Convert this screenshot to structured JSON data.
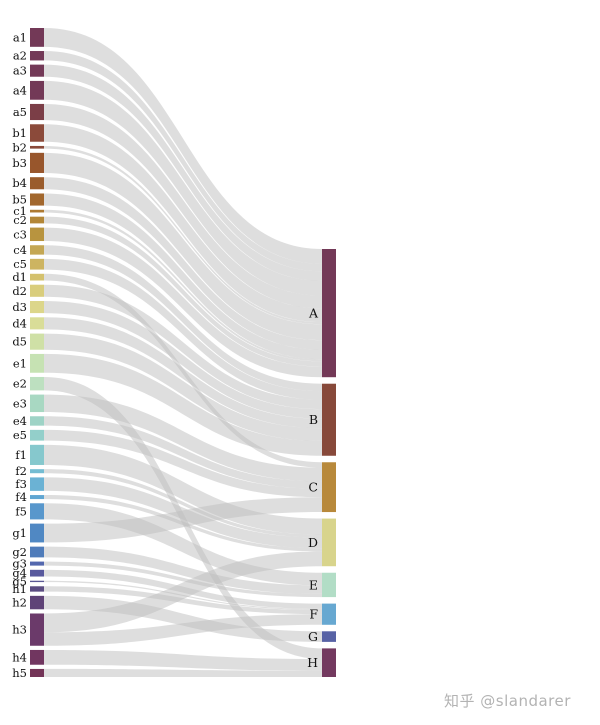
{
  "chart_data": {
    "type": "sankey",
    "title": "",
    "sources": [
      {
        "name": "a1",
        "color": "#733957",
        "value": 14
      },
      {
        "name": "a2",
        "color": "#733957",
        "value": 7
      },
      {
        "name": "a3",
        "color": "#733957",
        "value": 9
      },
      {
        "name": "a4",
        "color": "#733957",
        "value": 14
      },
      {
        "name": "a5",
        "color": "#7b3e47",
        "value": 12
      },
      {
        "name": "b1",
        "color": "#8b4a3a",
        "value": 13
      },
      {
        "name": "b2",
        "color": "#8b4a3a",
        "value": 2
      },
      {
        "name": "b3",
        "color": "#98562c",
        "value": 15
      },
      {
        "name": "b4",
        "color": "#9a5c2c",
        "value": 9
      },
      {
        "name": "b5",
        "color": "#a2672d",
        "value": 9
      },
      {
        "name": "c1",
        "color": "#ad7a32",
        "value": 2
      },
      {
        "name": "c2",
        "color": "#b38738",
        "value": 5
      },
      {
        "name": "c3",
        "color": "#b8943f",
        "value": 10
      },
      {
        "name": "c4",
        "color": "#c4a754",
        "value": 7
      },
      {
        "name": "c5",
        "color": "#cdb461",
        "value": 8
      },
      {
        "name": "d1",
        "color": "#d4c16d",
        "value": 5
      },
      {
        "name": "d2",
        "color": "#d9cd7c",
        "value": 9
      },
      {
        "name": "d3",
        "color": "#dcd68a",
        "value": 9
      },
      {
        "name": "d4",
        "color": "#d9dd98",
        "value": 9
      },
      {
        "name": "d5",
        "color": "#cfe0a6",
        "value": 12
      },
      {
        "name": "e1",
        "color": "#c6e2b3",
        "value": 14
      },
      {
        "name": "e2",
        "color": "#bde0c0",
        "value": 10
      },
      {
        "name": "e3",
        "color": "#a8d8c2",
        "value": 13
      },
      {
        "name": "e4",
        "color": "#9ed3c6",
        "value": 7
      },
      {
        "name": "e5",
        "color": "#93cfca",
        "value": 8
      },
      {
        "name": "f1",
        "color": "#86c8cd",
        "value": 15
      },
      {
        "name": "f2",
        "color": "#74bcd2",
        "value": 3
      },
      {
        "name": "f3",
        "color": "#6bb2d4",
        "value": 10
      },
      {
        "name": "f4",
        "color": "#60a6d2",
        "value": 3
      },
      {
        "name": "f5",
        "color": "#5897cc",
        "value": 12
      },
      {
        "name": "g1",
        "color": "#5088c3",
        "value": 14
      },
      {
        "name": "g2",
        "color": "#4f7cba",
        "value": 8
      },
      {
        "name": "g3",
        "color": "#5468ae",
        "value": 3
      },
      {
        "name": "g4",
        "color": "#58599d",
        "value": 5
      },
      {
        "name": "g5",
        "color": "#5a5794",
        "value": 1
      },
      {
        "name": "h1",
        "color": "#5b4c82",
        "value": 4
      },
      {
        "name": "h2",
        "color": "#5f4377",
        "value": 10
      },
      {
        "name": "h3",
        "color": "#6b3a6a",
        "value": 24
      },
      {
        "name": "h4",
        "color": "#713660",
        "value": 11
      },
      {
        "name": "h5",
        "color": "#733457",
        "value": 6
      }
    ],
    "targets": [
      {
        "name": "A",
        "color": "#733957"
      },
      {
        "name": "B",
        "color": "#87493a"
      },
      {
        "name": "C",
        "color": "#b8893b"
      },
      {
        "name": "D",
        "color": "#d8d48c"
      },
      {
        "name": "E",
        "color": "#b2ddc6"
      },
      {
        "name": "F",
        "color": "#67a8d1"
      },
      {
        "name": "G",
        "color": "#5762a5"
      },
      {
        "name": "H",
        "color": "#73395f"
      }
    ],
    "links": [
      {
        "source": "a1",
        "target": "A",
        "value": 14
      },
      {
        "source": "a2",
        "target": "A",
        "value": 7
      },
      {
        "source": "a3",
        "target": "A",
        "value": 9
      },
      {
        "source": "a4",
        "target": "A",
        "value": 14
      },
      {
        "source": "a5",
        "target": "A",
        "value": 12
      },
      {
        "source": "b1",
        "target": "A",
        "value": 13
      },
      {
        "source": "b2",
        "target": "A",
        "value": 2
      },
      {
        "source": "b3",
        "target": "A",
        "value": 15
      },
      {
        "source": "b4",
        "target": "A",
        "value": 9
      },
      {
        "source": "b5",
        "target": "A",
        "value": 9
      },
      {
        "source": "c1",
        "target": "A",
        "value": 2
      },
      {
        "source": "c2",
        "target": "A",
        "value": 5
      },
      {
        "source": "c3",
        "target": "A",
        "value": 10
      },
      {
        "source": "c4",
        "target": "B",
        "value": 7
      },
      {
        "source": "c5",
        "target": "B",
        "value": 8
      },
      {
        "source": "d1",
        "target": "C",
        "value": 5
      },
      {
        "source": "d2",
        "target": "B",
        "value": 9
      },
      {
        "source": "d3",
        "target": "B",
        "value": 9
      },
      {
        "source": "d4",
        "target": "B",
        "value": 9
      },
      {
        "source": "d5",
        "target": "B",
        "value": 12
      },
      {
        "source": "e1",
        "target": "B",
        "value": 14
      },
      {
        "source": "e2",
        "target": "H",
        "value": 10
      },
      {
        "source": "e3",
        "target": "C",
        "value": 13
      },
      {
        "source": "e4",
        "target": "C",
        "value": 7
      },
      {
        "source": "e5",
        "target": "C",
        "value": 8
      },
      {
        "source": "f1",
        "target": "D",
        "value": 15
      },
      {
        "source": "f2",
        "target": "D",
        "value": 3
      },
      {
        "source": "f3",
        "target": "D",
        "value": 10
      },
      {
        "source": "f4",
        "target": "D",
        "value": 3
      },
      {
        "source": "f5",
        "target": "E",
        "value": 12
      },
      {
        "source": "g1",
        "target": "C",
        "value": 14
      },
      {
        "source": "g2",
        "target": "E",
        "value": 8
      },
      {
        "source": "g3",
        "target": "E",
        "value": 3
      },
      {
        "source": "g4",
        "target": "F",
        "value": 5
      },
      {
        "source": "g5",
        "target": "F",
        "value": 1
      },
      {
        "source": "h1",
        "target": "F",
        "value": 4
      },
      {
        "source": "h2",
        "target": "G",
        "value": 10
      },
      {
        "source": "h3",
        "target": "D",
        "value": 14
      },
      {
        "source": "h3",
        "target": "F",
        "value": 10
      },
      {
        "source": "h4",
        "target": "H",
        "value": 11
      },
      {
        "source": "h5",
        "target": "H",
        "value": 6
      }
    ]
  },
  "watermark": "知乎 @slandarer"
}
